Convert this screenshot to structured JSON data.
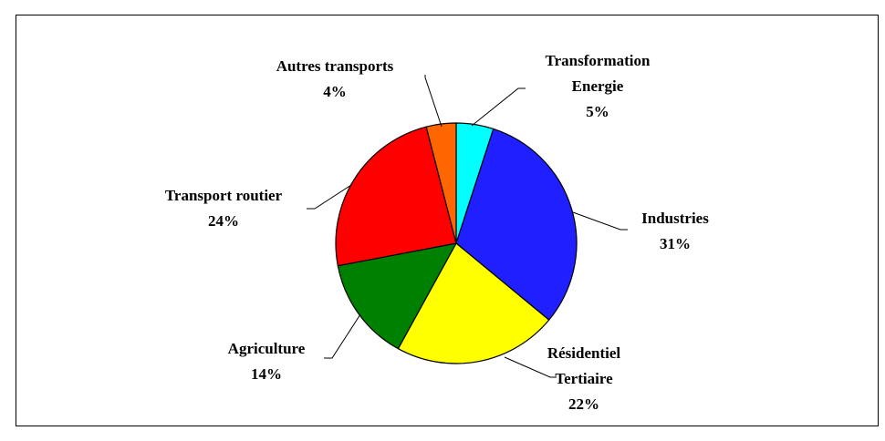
{
  "chart_data": {
    "type": "pie",
    "categories": [
      "Transformation\nEnergie",
      "Industries",
      "Résidentiel\nTertiaire",
      "Agriculture",
      "Transport routier",
      "Autres transports"
    ],
    "values": [
      5,
      31,
      22,
      14,
      24,
      4
    ],
    "value_labels": [
      "5%",
      "31%",
      "22%",
      "14%",
      "24%",
      "4%"
    ],
    "colors": [
      "#00ffff",
      "#1f1fff",
      "#ffff00",
      "#008000",
      "#ff0000",
      "#ff6600"
    ]
  }
}
